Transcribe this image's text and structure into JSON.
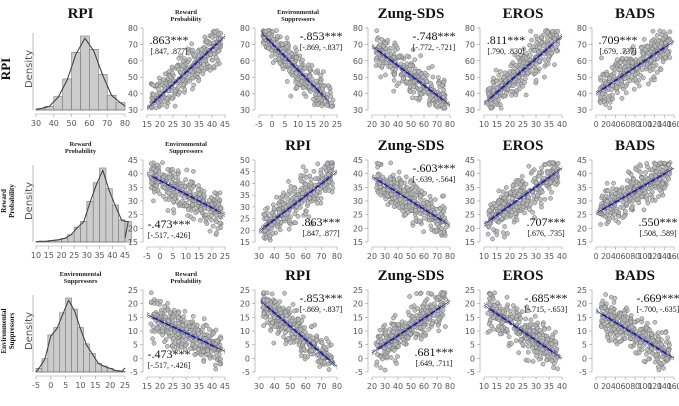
{
  "figure": {
    "variables": [
      "RPI",
      "Reward Probability",
      "Environmental Suppressors",
      "Zung-SDS",
      "EROS",
      "BADS"
    ]
  },
  "chart_data": [
    {
      "type": "histogram",
      "row": 0,
      "col": 0,
      "title": "RPI",
      "title_style": "big",
      "row_label": "RPI",
      "ylabel": "Density",
      "xlim": [
        30,
        80
      ],
      "xticks": [
        30,
        40,
        50,
        60,
        70,
        80
      ],
      "bin_width": 5,
      "bins_start": 30,
      "densities": [
        0.02,
        0.05,
        0.18,
        0.42,
        0.78,
        1.0,
        0.82,
        0.48,
        0.2,
        0.1
      ]
    },
    {
      "type": "scatter",
      "row": 0,
      "col": 1,
      "title": "Reward Probability",
      "title_style": "small",
      "xlim": [
        15,
        45
      ],
      "ylim": [
        30,
        80
      ],
      "xticks": [
        15,
        20,
        25,
        30,
        35,
        40,
        45
      ],
      "yticks": [
        30,
        40,
        50,
        60,
        70,
        80
      ],
      "r": ".863***",
      "ci": "[.847, .877]",
      "label_pos": "top-left",
      "fit": [
        [
          15,
          31
        ],
        [
          45,
          75
        ]
      ]
    },
    {
      "type": "scatter",
      "row": 0,
      "col": 2,
      "title": "Environmental Suppressors",
      "title_style": "small",
      "xlim": [
        -5,
        25
      ],
      "ylim": [
        30,
        80
      ],
      "xticks": [
        -5,
        0,
        5,
        10,
        15,
        20,
        25
      ],
      "yticks": [
        30,
        40,
        50,
        60,
        70,
        80
      ],
      "r": "-.853***",
      "ci": "[-.869, -.837]",
      "label_pos": "top-right",
      "fit": [
        [
          -4,
          77
        ],
        [
          22,
          35
        ]
      ]
    },
    {
      "type": "scatter",
      "row": 0,
      "col": 3,
      "title": "Zung-SDS",
      "title_style": "big",
      "xlim": [
        20,
        80
      ],
      "ylim": [
        30,
        80
      ],
      "xticks": [
        20,
        30,
        40,
        50,
        60,
        70,
        80
      ],
      "yticks": [
        30,
        40,
        50,
        60,
        70,
        80
      ],
      "r": "-.748***",
      "ci": "[-.772, -.721]",
      "label_pos": "top-right",
      "fit": [
        [
          20,
          69
        ],
        [
          80,
          33
        ]
      ]
    },
    {
      "type": "scatter",
      "row": 0,
      "col": 4,
      "title": "EROS",
      "title_style": "big",
      "xlim": [
        10,
        40
      ],
      "ylim": [
        30,
        80
      ],
      "xticks": [
        10,
        15,
        20,
        25,
        30,
        35,
        40
      ],
      "yticks": [
        30,
        40,
        50,
        60,
        70,
        80
      ],
      "r": ".811***",
      "ci": "[.790, .830]",
      "label_pos": "top-left",
      "fit": [
        [
          10,
          34
        ],
        [
          40,
          75
        ]
      ]
    },
    {
      "type": "scatter",
      "row": 0,
      "col": 5,
      "title": "BADS",
      "title_style": "big",
      "xlim": [
        0,
        160
      ],
      "ylim": [
        30,
        80
      ],
      "xticks": [
        0,
        20,
        40,
        60,
        80,
        100,
        120,
        140,
        160
      ],
      "yticks": [
        30,
        40,
        50,
        60,
        70,
        80
      ],
      "r": ".709***",
      "ci": "[.679, .737]",
      "label_pos": "top-left",
      "fit": [
        [
          0,
          40
        ],
        [
          160,
          72
        ]
      ]
    },
    {
      "type": "histogram",
      "row": 1,
      "col": 0,
      "title": "Reward Probability",
      "title_style": "small",
      "row_label": "Reward Probability",
      "ylabel": "Density",
      "xlim": [
        10,
        45
      ],
      "xticks": [
        10,
        15,
        20,
        25,
        30,
        35,
        40,
        45
      ],
      "bin_width": 2.5,
      "bins_start": 10,
      "densities": [
        0.01,
        0.01,
        0.02,
        0.03,
        0.05,
        0.1,
        0.2,
        0.28,
        0.55,
        0.8,
        1.0,
        0.72,
        0.5,
        0.3,
        0.28
      ]
    },
    {
      "type": "scatter",
      "row": 1,
      "col": 1,
      "title": "Environmental Suppressors",
      "title_style": "small",
      "xlim": [
        -5,
        25
      ],
      "ylim": [
        15,
        45
      ],
      "xticks": [
        -5,
        0,
        5,
        10,
        15,
        20,
        25
      ],
      "yticks": [
        15,
        20,
        25,
        30,
        35,
        40,
        45
      ],
      "r": "-.473***",
      "ci": "[-.517, -.426]",
      "label_pos": "bottom-left",
      "fit": [
        [
          -5,
          40
        ],
        [
          25,
          25
        ]
      ]
    },
    {
      "type": "scatter",
      "row": 1,
      "col": 2,
      "title": "RPI",
      "title_style": "big",
      "xlim": [
        30,
        80
      ],
      "ylim": [
        15,
        50
      ],
      "xticks": [
        30,
        40,
        50,
        60,
        70,
        80
      ],
      "yticks": [
        15,
        20,
        25,
        30,
        35,
        40,
        45,
        50
      ],
      "r": ".863***",
      "ci": "[.847, .877]",
      "label_pos": "bottom-right",
      "fit": [
        [
          30,
          19.5
        ],
        [
          80,
          45
        ]
      ]
    },
    {
      "type": "scatter",
      "row": 1,
      "col": 3,
      "title": "Zung-SDS",
      "title_style": "big",
      "xlim": [
        20,
        80
      ],
      "ylim": [
        15,
        45
      ],
      "xticks": [
        20,
        30,
        40,
        50,
        60,
        70,
        80
      ],
      "yticks": [
        15,
        20,
        25,
        30,
        35,
        40,
        45
      ],
      "r": "-.603***",
      "ci": "[-.639, -.564]",
      "label_pos": "top-right",
      "fit": [
        [
          20,
          39
        ],
        [
          80,
          21
        ]
      ]
    },
    {
      "type": "scatter",
      "row": 1,
      "col": 4,
      "title": "EROS",
      "title_style": "big",
      "xlim": [
        10,
        40
      ],
      "ylim": [
        15,
        45
      ],
      "xticks": [
        10,
        15,
        20,
        25,
        30,
        35,
        40
      ],
      "yticks": [
        15,
        20,
        25,
        30,
        35,
        40,
        45
      ],
      "r": ".707***",
      "ci": "[.676, .735]",
      "label_pos": "bottom-right",
      "fit": [
        [
          10,
          21.5
        ],
        [
          40,
          42
        ]
      ]
    },
    {
      "type": "scatter",
      "row": 1,
      "col": 5,
      "title": "BADS",
      "title_style": "big",
      "xlim": [
        0,
        160
      ],
      "ylim": [
        15,
        45
      ],
      "xticks": [
        0,
        20,
        40,
        60,
        80,
        100,
        120,
        140,
        160
      ],
      "yticks": [
        15,
        20,
        25,
        30,
        35,
        40,
        45
      ],
      "r": ".550***",
      "ci": "[.508, .589]",
      "label_pos": "bottom-right",
      "fit": [
        [
          0,
          25.5
        ],
        [
          160,
          42
        ]
      ]
    },
    {
      "type": "histogram",
      "row": 2,
      "col": 0,
      "title": "Environmental Suppressors",
      "title_style": "small",
      "row_label": "Environmental Suppressors",
      "ylabel": "Density",
      "xlim": [
        -5,
        25
      ],
      "xticks": [
        -5,
        0,
        5,
        10,
        15,
        20,
        25
      ],
      "bin_width": 2,
      "bins_start": -5,
      "densities": [
        0.05,
        0.18,
        0.5,
        0.6,
        0.8,
        1.0,
        0.85,
        0.6,
        0.38,
        0.25,
        0.12,
        0.08,
        0.05,
        0.02,
        0.01
      ]
    },
    {
      "type": "scatter",
      "row": 2,
      "col": 1,
      "title": "Reward Probability",
      "title_style": "small",
      "xlim": [
        15,
        45
      ],
      "ylim": [
        -5,
        25
      ],
      "xticks": [
        15,
        20,
        25,
        30,
        35,
        40,
        45
      ],
      "yticks": [
        -5,
        0,
        5,
        10,
        15,
        20,
        25
      ],
      "r": "-.473***",
      "ci": "[-.517, -.426]",
      "label_pos": "bottom-left",
      "fit": [
        [
          15,
          16
        ],
        [
          45,
          2.5
        ]
      ]
    },
    {
      "type": "scatter",
      "row": 2,
      "col": 2,
      "title": "RPI",
      "title_style": "big",
      "xlim": [
        30,
        80
      ],
      "ylim": [
        -5,
        25
      ],
      "xticks": [
        30,
        40,
        50,
        60,
        70,
        80
      ],
      "yticks": [
        -5,
        0,
        5,
        10,
        15,
        20,
        25
      ],
      "r": "-.853***",
      "ci": "[-.869, -.837]",
      "label_pos": "top-right",
      "fit": [
        [
          31,
          21
        ],
        [
          80,
          -3
        ]
      ]
    },
    {
      "type": "scatter",
      "row": 2,
      "col": 3,
      "title": "Zung-SDS",
      "title_style": "big",
      "xlim": [
        20,
        80
      ],
      "ylim": [
        -5,
        25
      ],
      "xticks": [
        20,
        30,
        40,
        50,
        60,
        70,
        80
      ],
      "yticks": [
        -5,
        0,
        5,
        10,
        15,
        20,
        25
      ],
      "r": ".681***",
      "ci": "[.649, .711]",
      "label_pos": "bottom-right",
      "fit": [
        [
          20,
          2
        ],
        [
          80,
          21
        ]
      ]
    },
    {
      "type": "scatter",
      "row": 2,
      "col": 4,
      "title": "EROS",
      "title_style": "big",
      "xlim": [
        10,
        40
      ],
      "ylim": [
        -5,
        25
      ],
      "xticks": [
        10,
        15,
        20,
        25,
        30,
        35,
        40
      ],
      "yticks": [
        -5,
        0,
        5,
        10,
        15,
        20,
        25
      ],
      "r": "-.685***",
      "ci": "[-.715, -.653]",
      "label_pos": "top-right",
      "fit": [
        [
          10,
          19.5
        ],
        [
          40,
          0
        ]
      ]
    },
    {
      "type": "scatter",
      "row": 2,
      "col": 5,
      "title": "BADS",
      "title_style": "big",
      "xlim": [
        0,
        160
      ],
      "ylim": [
        -5,
        25
      ],
      "xticks": [
        0,
        20,
        40,
        60,
        80,
        100,
        120,
        140,
        160
      ],
      "yticks": [
        -5,
        0,
        5,
        10,
        15,
        20,
        25
      ],
      "r": "-.669***",
      "ci": "[-.700, -.635]",
      "label_pos": "top-right",
      "fit": [
        [
          0,
          17.5
        ],
        [
          160,
          0
        ]
      ]
    }
  ],
  "colors": {
    "point_fill": "#b8b8b8",
    "point_stroke": "#6e6e6e",
    "fit_line": "#1a1a8c",
    "ci_band": "#5a5ad0",
    "hist_fill": "#cccccc",
    "hist_stroke": "#777777",
    "density_line": "#444444",
    "axis": "#999999"
  }
}
